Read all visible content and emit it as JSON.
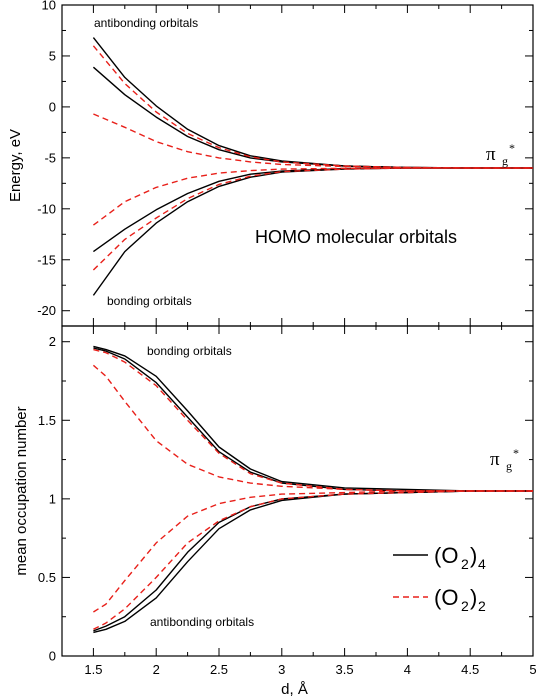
{
  "chart_data": [
    {
      "type": "line",
      "panel": "top",
      "ylabel": "Energy, eV",
      "xlim": [
        1.25,
        5
      ],
      "ylim": [
        -21.5,
        10
      ],
      "yticks": [
        -20,
        -15,
        -10,
        -5,
        0,
        5,
        10
      ],
      "annotations": {
        "antibonding": "antibonding orbitals",
        "bonding": "bonding orbitals",
        "homo": "HOMO molecular orbitals",
        "pi": "π",
        "pi_sub": "g",
        "pi_sup": "*"
      },
      "series": [
        {
          "style": "solid",
          "color": "#000000",
          "x": [
            1.5,
            1.75,
            2,
            2.25,
            2.5,
            2.75,
            3,
            3.5,
            4,
            4.5,
            5
          ],
          "y": [
            6.8,
            2.9,
            0.1,
            -2.2,
            -3.8,
            -4.8,
            -5.3,
            -5.8,
            -5.95,
            -6.0,
            -6.0
          ]
        },
        {
          "style": "solid",
          "color": "#000000",
          "x": [
            1.5,
            1.75,
            2,
            2.25,
            2.5,
            2.75,
            3,
            3.5,
            4,
            4.5,
            5
          ],
          "y": [
            3.9,
            1.2,
            -1.0,
            -2.9,
            -4.2,
            -5.0,
            -5.4,
            -5.8,
            -5.95,
            -6.0,
            -6.0
          ]
        },
        {
          "style": "solid",
          "color": "#000000",
          "x": [
            1.5,
            1.75,
            2,
            2.25,
            2.5,
            2.75,
            3,
            3.5,
            4,
            4.5,
            5
          ],
          "y": [
            -14.2,
            -12.0,
            -10.1,
            -8.5,
            -7.3,
            -6.6,
            -6.3,
            -6.05,
            -6.0,
            -6.0,
            -6.0
          ]
        },
        {
          "style": "solid",
          "color": "#000000",
          "x": [
            1.5,
            1.75,
            2,
            2.25,
            2.5,
            2.75,
            3,
            3.5,
            4,
            4.5,
            5
          ],
          "y": [
            -18.5,
            -14.2,
            -11.4,
            -9.3,
            -7.8,
            -6.9,
            -6.4,
            -6.1,
            -6.0,
            -6.0,
            -6.0
          ]
        },
        {
          "style": "dashed",
          "color": "#e8201a",
          "x": [
            1.5,
            1.75,
            2,
            2.25,
            2.5,
            2.75,
            3,
            3.5,
            4,
            4.5,
            5
          ],
          "y": [
            6.0,
            2.3,
            -0.5,
            -2.6,
            -4.0,
            -4.9,
            -5.4,
            -5.8,
            -5.95,
            -6.0,
            -6.0
          ]
        },
        {
          "style": "dashed",
          "color": "#e8201a",
          "x": [
            1.5,
            1.75,
            2,
            2.25,
            2.5,
            2.75,
            3,
            3.5,
            4,
            4.5,
            5
          ],
          "y": [
            -0.7,
            -2.0,
            -3.4,
            -4.4,
            -5.0,
            -5.4,
            -5.65,
            -5.85,
            -5.95,
            -6.0,
            -6.0
          ]
        },
        {
          "style": "dashed",
          "color": "#e8201a",
          "x": [
            1.5,
            1.75,
            2,
            2.25,
            2.5,
            2.75,
            3,
            3.5,
            4,
            4.5,
            5
          ],
          "y": [
            -11.6,
            -9.3,
            -7.9,
            -7.0,
            -6.5,
            -6.25,
            -6.1,
            -6.02,
            -6.0,
            -6.0,
            -6.0
          ]
        },
        {
          "style": "dashed",
          "color": "#e8201a",
          "x": [
            1.5,
            1.75,
            2,
            2.25,
            2.5,
            2.75,
            3,
            3.5,
            4,
            4.5,
            5
          ],
          "y": [
            -16.0,
            -13.0,
            -10.9,
            -9.0,
            -7.6,
            -6.8,
            -6.35,
            -6.1,
            -6.0,
            -6.0,
            -6.0
          ]
        }
      ]
    },
    {
      "type": "line",
      "panel": "bottom",
      "xlabel": "d, Å",
      "ylabel": "mean occupation number",
      "xlim": [
        1.25,
        5
      ],
      "ylim": [
        0,
        2.1
      ],
      "xticks": [
        1.5,
        2,
        2.5,
        3,
        3.5,
        4,
        4.5,
        5
      ],
      "yticks": [
        0,
        0.5,
        1,
        1.5,
        2
      ],
      "annotations": {
        "bonding": "bonding orbitals",
        "antibonding": "antibonding orbitals",
        "pi": "π",
        "pi_sub": "g",
        "pi_sup": "*"
      },
      "legend": {
        "position": "bottom-right",
        "entries": [
          {
            "style": "solid",
            "color": "#000000",
            "text": "(O",
            "sub": "2",
            "close": ")",
            "sub2": "4"
          },
          {
            "style": "dashed",
            "color": "#e8201a",
            "text": "(O",
            "sub": "2",
            "close": ")",
            "sub2": "2"
          }
        ]
      },
      "series": [
        {
          "style": "solid",
          "color": "#000000",
          "x": [
            1.5,
            1.6,
            1.75,
            2,
            2.25,
            2.5,
            2.75,
            3,
            3.5,
            4,
            4.5,
            5
          ],
          "y": [
            1.97,
            1.95,
            1.91,
            1.78,
            1.56,
            1.33,
            1.19,
            1.11,
            1.07,
            1.06,
            1.05,
            1.05
          ]
        },
        {
          "style": "solid",
          "color": "#000000",
          "x": [
            1.5,
            1.6,
            1.75,
            2,
            2.25,
            2.5,
            2.75,
            3,
            3.5,
            4,
            4.5,
            5
          ],
          "y": [
            1.96,
            1.94,
            1.89,
            1.74,
            1.52,
            1.3,
            1.17,
            1.1,
            1.06,
            1.05,
            1.05,
            1.05
          ]
        },
        {
          "style": "solid",
          "color": "#000000",
          "x": [
            1.5,
            1.6,
            1.75,
            2,
            2.25,
            2.5,
            2.75,
            3,
            3.5,
            4,
            4.5,
            5
          ],
          "y": [
            0.16,
            0.19,
            0.25,
            0.42,
            0.66,
            0.85,
            0.95,
            1.0,
            1.03,
            1.04,
            1.05,
            1.05
          ]
        },
        {
          "style": "solid",
          "color": "#000000",
          "x": [
            1.5,
            1.6,
            1.75,
            2,
            2.25,
            2.5,
            2.75,
            3,
            3.5,
            4,
            4.5,
            5
          ],
          "y": [
            0.15,
            0.17,
            0.22,
            0.37,
            0.6,
            0.81,
            0.93,
            0.99,
            1.03,
            1.04,
            1.05,
            1.05
          ]
        },
        {
          "style": "dashed",
          "color": "#e8201a",
          "x": [
            1.5,
            1.6,
            1.75,
            2,
            2.25,
            2.5,
            2.75,
            3,
            3.5,
            4,
            4.5,
            5
          ],
          "y": [
            1.95,
            1.93,
            1.87,
            1.72,
            1.5,
            1.29,
            1.16,
            1.1,
            1.06,
            1.05,
            1.05,
            1.05
          ]
        },
        {
          "style": "dashed",
          "color": "#e8201a",
          "x": [
            1.5,
            1.6,
            1.75,
            2,
            2.25,
            2.5,
            2.75,
            3,
            3.5,
            4,
            4.5,
            5
          ],
          "y": [
            1.85,
            1.78,
            1.62,
            1.37,
            1.22,
            1.14,
            1.1,
            1.08,
            1.06,
            1.05,
            1.05,
            1.05
          ]
        },
        {
          "style": "dashed",
          "color": "#e8201a",
          "x": [
            1.5,
            1.6,
            1.75,
            2,
            2.25,
            2.5,
            2.75,
            3,
            3.5,
            4,
            4.5,
            5
          ],
          "y": [
            0.28,
            0.33,
            0.48,
            0.72,
            0.89,
            0.97,
            1.01,
            1.03,
            1.04,
            1.05,
            1.05,
            1.05
          ]
        },
        {
          "style": "dashed",
          "color": "#e8201a",
          "x": [
            1.5,
            1.6,
            1.75,
            2,
            2.25,
            2.5,
            2.75,
            3,
            3.5,
            4,
            4.5,
            5
          ],
          "y": [
            0.17,
            0.21,
            0.3,
            0.5,
            0.72,
            0.86,
            0.95,
            1.0,
            1.03,
            1.04,
            1.05,
            1.05
          ]
        }
      ]
    }
  ]
}
